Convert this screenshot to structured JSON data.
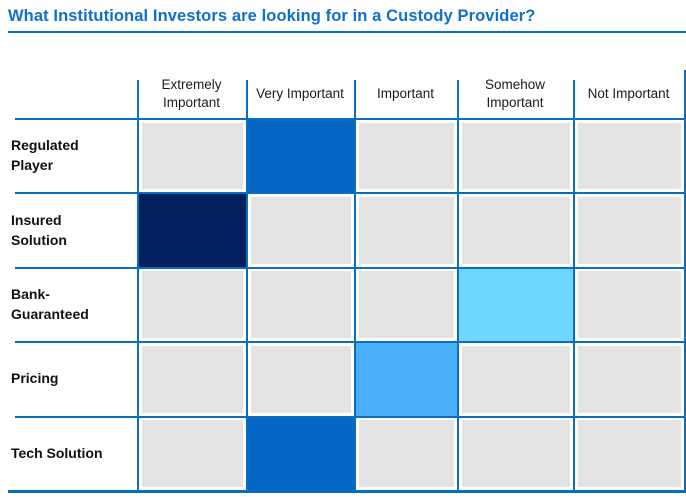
{
  "title": "What Institutional Investors are looking for in a Custody Provider?",
  "theme": {
    "title_color": "#0f70cc",
    "grid_color": "#0a6dbe",
    "cell_gray": "#e3e3e3",
    "text_dark": "#1b1b1b",
    "label_black": "#101010"
  },
  "chart_data": {
    "type": "heatmap",
    "title": "What Institutional Investors are looking for in a Custody Provider?",
    "columns": [
      "Extremely Important",
      "Very Important",
      "Important",
      "Somehow Important",
      "Not Important"
    ],
    "rows": [
      {
        "label": "Regulated Player",
        "selected_column_index": 1,
        "selected_column": "Very Important",
        "highlight_color": "#0567c5"
      },
      {
        "label": "Insured Solution",
        "selected_column_index": 0,
        "selected_column": "Extremely Important",
        "highlight_color": "#02215c"
      },
      {
        "label": "Bank-Guaranteed",
        "selected_column_index": 3,
        "selected_column": "Somehow Important",
        "highlight_color": "#6ed7fc"
      },
      {
        "label": "Pricing",
        "selected_column_index": 2,
        "selected_column": "Important",
        "highlight_color": "#4bb0fa"
      },
      {
        "label": "Tech Solution",
        "selected_column_index": 1,
        "selected_column": "Very Important",
        "highlight_color": "#0567c5"
      }
    ],
    "legend_position": "none",
    "grid": true
  }
}
